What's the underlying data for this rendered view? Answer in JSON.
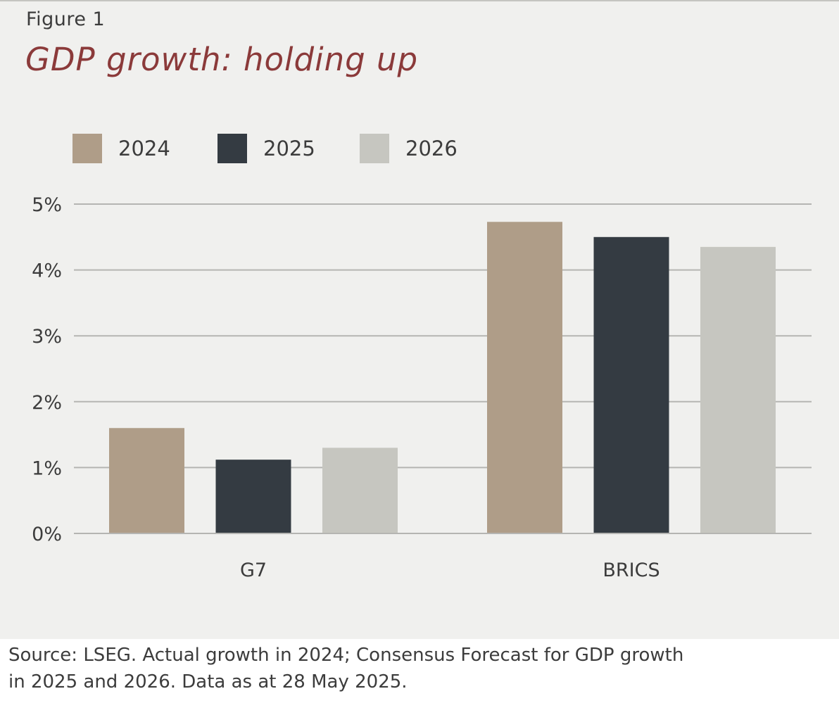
{
  "figure_label": "Figure 1",
  "title": "GDP growth: holding up",
  "source_lines": [
    "Source: LSEG. Actual growth in 2024; Consensus Forecast for GDP growth",
    "in 2025 and 2026. Data as at 28 May 2025."
  ],
  "colors": {
    "2024": "#af9d88",
    "2025": "#343b42",
    "2026": "#c6c6c0",
    "grid": "#b5b5b2",
    "title": "#8b3a3a"
  },
  "chart_data": {
    "type": "bar",
    "categories": [
      "G7",
      "BRICS"
    ],
    "series": [
      {
        "name": "2024",
        "values": [
          1.6,
          4.73
        ]
      },
      {
        "name": "2025",
        "values": [
          1.12,
          4.5
        ]
      },
      {
        "name": "2026",
        "values": [
          1.3,
          4.35
        ]
      }
    ],
    "title": "GDP growth: holding up",
    "xlabel": "",
    "ylabel": "",
    "ylim": [
      0,
      5
    ],
    "yticks": [
      "0%",
      "1%",
      "2%",
      "3%",
      "4%",
      "5%"
    ],
    "grid": true,
    "legend_position": "top-left"
  }
}
